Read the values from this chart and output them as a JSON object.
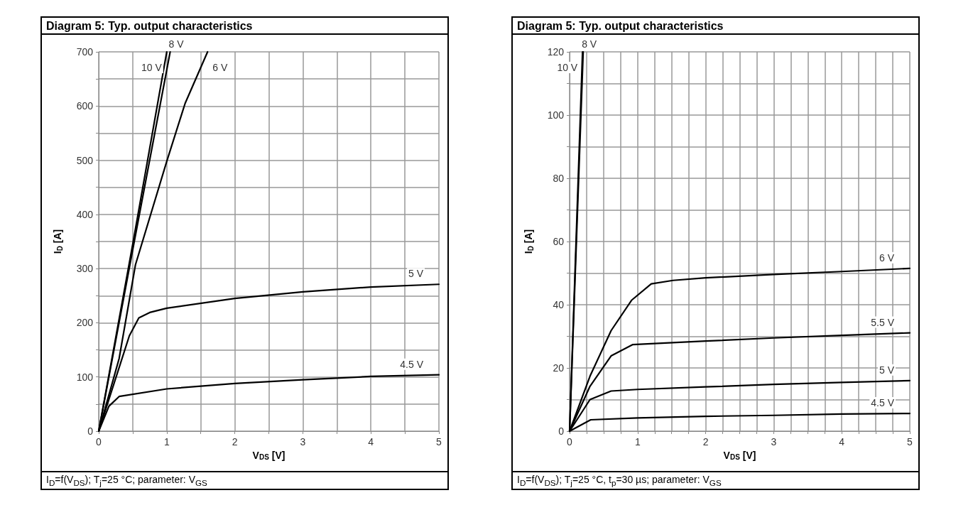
{
  "chart_data": [
    {
      "type": "line",
      "title": "Diagram 5: Typ. output characteristics",
      "xlabel": "V$_{DS}$ [V]",
      "ylabel": "I$_{D}$ [A]",
      "annotations": [
        "I$_{D}$=f(V$_{DS}$); T$_{j}$=25 °C; parameter: V$_{GS}$"
      ],
      "xlim": [
        0,
        5
      ],
      "xticks": [
        0,
        {
          "value": 0.5,
          "label": null
        },
        1,
        {
          "value": 1.5,
          "label": null
        },
        2,
        {
          "value": 2.5,
          "label": null
        },
        3,
        {
          "value": 3.5,
          "label": null
        },
        4,
        {
          "value": 4.5,
          "label": null
        },
        5
      ],
      "ylim": [
        0,
        700
      ],
      "yticks": [
        0,
        {
          "value": 50,
          "label": null
        },
        100,
        {
          "value": 150,
          "label": null
        },
        200,
        {
          "value": 250,
          "label": null
        },
        300,
        {
          "value": 350,
          "label": null
        },
        400,
        {
          "value": 450,
          "label": null
        },
        500,
        {
          "value": 550,
          "label": null
        },
        600,
        {
          "value": 650,
          "label": null
        },
        700
      ],
      "grid": true,
      "series": [
        {
          "name": "10 V",
          "color": "#000000",
          "x": [
            0,
            0.5,
            1.0
          ],
          "values": [
            0,
            345,
            700
          ]
        },
        {
          "name": "8 V",
          "color": "#000000",
          "x": [
            0,
            0.5,
            1.05
          ],
          "values": [
            0,
            335,
            700
          ]
        },
        {
          "name": "6 V",
          "color": "#000000",
          "x": [
            0,
            0.3,
            0.54,
            1.0,
            1.27,
            1.6
          ],
          "values": [
            0,
            134,
            307,
            498,
            605,
            700
          ]
        },
        {
          "name": "5 V",
          "color": "#000000",
          "x": [
            0,
            0.45,
            0.59,
            0.75,
            1.0,
            2,
            3,
            4,
            5
          ],
          "values": [
            0,
            176,
            209,
            219,
            227,
            245,
            257,
            266,
            271
          ]
        },
        {
          "name": "4.5 V",
          "color": "#000000",
          "x": [
            0,
            0.15,
            0.3,
            1,
            2,
            3,
            4,
            5
          ],
          "values": [
            0,
            46,
            64,
            78,
            88,
            95,
            101,
            104
          ]
        }
      ]
    },
    {
      "type": "line",
      "title": "Diagram 5: Typ. output characteristics",
      "xlabel": "V$_{DS}$ [V]",
      "ylabel": "I$_{D}$ [A]",
      "annotations": [
        "I$_{D}$=f(V$_{DS}$); T$_{j}$=25 °C, t$_{p}$=30 µs; parameter: V$_{GS}$"
      ],
      "xlim": [
        0,
        5
      ],
      "xticks": [
        0,
        {
          "value": 0.25,
          "label": null
        },
        {
          "value": 0.5,
          "label": null
        },
        {
          "value": 0.75,
          "label": null
        },
        1,
        {
          "value": 1.25,
          "label": null
        },
        {
          "value": 1.5,
          "label": null
        },
        {
          "value": 1.75,
          "label": null
        },
        2,
        {
          "value": 2.25,
          "label": null
        },
        {
          "value": 2.5,
          "label": null
        },
        {
          "value": 2.75,
          "label": null
        },
        3,
        {
          "value": 3.25,
          "label": null
        },
        {
          "value": 3.5,
          "label": null
        },
        {
          "value": 3.75,
          "label": null
        },
        4,
        {
          "value": 4.25,
          "label": null
        },
        {
          "value": 4.5,
          "label": null
        },
        {
          "value": 4.75,
          "label": null
        },
        5
      ],
      "ylim": [
        0,
        120
      ],
      "yticks": [
        0,
        {
          "value": 10,
          "label": null
        },
        20,
        {
          "value": 30,
          "label": null
        },
        40,
        {
          "value": 50,
          "label": null
        },
        60,
        {
          "value": 70,
          "label": null
        },
        80,
        {
          "value": 90,
          "label": null
        },
        100,
        {
          "value": 110,
          "label": null
        },
        120
      ],
      "grid": true,
      "series": [
        {
          "name": "10 V",
          "color": "#000000",
          "x": [
            0,
            0.19
          ],
          "values": [
            0,
            120
          ]
        },
        {
          "name": "8 V",
          "color": "#000000",
          "x": [
            0,
            0.2
          ],
          "values": [
            0,
            120
          ]
        },
        {
          "name": "6 V",
          "color": "#000000",
          "x": [
            0,
            0.3,
            0.61,
            0.91,
            1.2,
            1.52,
            2,
            3,
            4,
            5
          ],
          "values": [
            0,
            17.4,
            31.8,
            41.4,
            46.6,
            47.7,
            48.5,
            49.6,
            50.5,
            51.5
          ]
        },
        {
          "name": "5.5 V",
          "color": "#000000",
          "x": [
            0,
            0.3,
            0.61,
            0.93,
            2,
            3,
            4,
            5
          ],
          "values": [
            0,
            14.2,
            23.8,
            27.4,
            28.5,
            29.5,
            30.3,
            31.1
          ]
        },
        {
          "name": "5 V",
          "color": "#000000",
          "x": [
            0,
            0.3,
            0.61,
            1,
            2,
            3,
            4,
            5
          ],
          "values": [
            0,
            10.0,
            12.7,
            13.2,
            14.0,
            14.8,
            15.4,
            16.0
          ]
        },
        {
          "name": "4.5 V",
          "color": "#000000",
          "x": [
            0,
            0.31,
            1,
            2,
            3,
            4,
            5
          ],
          "values": [
            0,
            3.6,
            4.2,
            4.7,
            5.0,
            5.4,
            5.6
          ]
        }
      ]
    }
  ]
}
